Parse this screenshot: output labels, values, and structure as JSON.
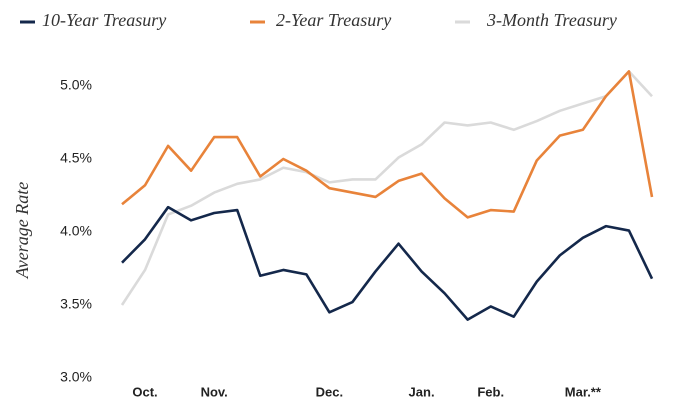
{
  "chart_data": {
    "type": "line",
    "y_label": "Average Rate",
    "categories": [
      null,
      "Oct.",
      null,
      null,
      "Nov.",
      null,
      null,
      null,
      null,
      "Dec.",
      null,
      null,
      null,
      "Jan.",
      null,
      null,
      "Feb.",
      null,
      null,
      null,
      "Mar.**",
      null,
      null,
      null
    ],
    "ylim": [
      3,
      5.1
    ],
    "yticks": [
      {
        "value": 3,
        "label": "3.0%"
      },
      {
        "value": 3.5,
        "label": "3.5%"
      },
      {
        "value": 4,
        "label": "4.0%"
      },
      {
        "value": 4.5,
        "label": "4.5%"
      },
      {
        "value": 5,
        "label": "5.0%"
      }
    ],
    "series": [
      {
        "name": "3-Month Treasury",
        "color": "#dadada",
        "values": [
          3.5,
          3.74,
          4.12,
          4.18,
          4.27,
          4.33,
          4.36,
          4.44,
          4.41,
          4.34,
          4.36,
          4.36,
          4.51,
          4.6,
          4.75,
          4.73,
          4.75,
          4.7,
          4.76,
          4.83,
          4.88,
          4.93,
          5.1,
          4.93
        ]
      },
      {
        "name": "2-Year Treasury",
        "color": "#e8833a",
        "values": [
          4.19,
          4.32,
          4.59,
          4.42,
          4.65,
          4.65,
          4.38,
          4.5,
          4.42,
          4.3,
          4.27,
          4.24,
          4.35,
          4.4,
          4.23,
          4.1,
          4.15,
          4.14,
          4.49,
          4.66,
          4.7,
          4.93,
          5.1,
          4.24
        ]
      },
      {
        "name": "10-Year Treasury",
        "color": "#14284b",
        "values": [
          3.79,
          3.95,
          4.17,
          4.08,
          4.13,
          4.15,
          3.7,
          3.74,
          3.71,
          3.45,
          3.52,
          3.73,
          3.92,
          3.73,
          3.58,
          3.4,
          3.49,
          3.42,
          3.66,
          3.84,
          3.96,
          4.04,
          4.01,
          3.68
        ]
      }
    ]
  }
}
